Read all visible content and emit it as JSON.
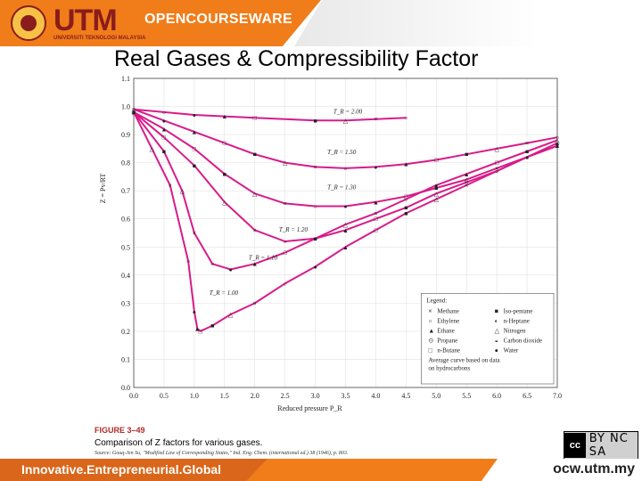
{
  "header": {
    "logo_text": "UTM",
    "logo_sub": "UNIVERSITI TEKNOLOGI MALAYSIA",
    "site_label": "OPENCOURSEWARE",
    "accent": "#f07d1a",
    "brand": "#8a1c1c"
  },
  "slide_title": "Real Gases & Compressibility Factor",
  "figure": {
    "label": "FIGURE 3–49",
    "description": "Comparison of Z factors for various gases.",
    "source": "Source: Gouq-Jen Su, \"Modified Law of Corresponding States,\" Ind. Eng. Chem. (international ed.) 38 (1946), p. 803."
  },
  "license": {
    "cc": "cc",
    "icons": "BY NC SA"
  },
  "footer": {
    "tagline": "Innovative.Entrepreneurial.Global",
    "url": "ocw.utm.my"
  },
  "chart_data": {
    "type": "line",
    "xlabel": "Reduced pressure P_R",
    "ylabel": "Z = Pv/RT",
    "xlim": [
      0,
      7.0
    ],
    "ylim": [
      0,
      1.1
    ],
    "xticks": [
      0,
      0.5,
      1.0,
      1.5,
      2.0,
      2.5,
      3.0,
      3.5,
      4.0,
      4.5,
      5.0,
      5.5,
      6.0,
      6.5,
      7.0
    ],
    "yticks": [
      0,
      0.1,
      0.2,
      0.3,
      0.4,
      0.5,
      0.6,
      0.7,
      0.8,
      0.9,
      1.0,
      1.1
    ],
    "grid": true,
    "line_color": "#d81b8a",
    "series": [
      {
        "name": "T_R = 2.00",
        "x": [
          0,
          0.5,
          1.0,
          1.5,
          2.0,
          3.0,
          3.5,
          4.0,
          4.5
        ],
        "y": [
          0.99,
          0.98,
          0.97,
          0.965,
          0.96,
          0.95,
          0.95,
          0.955,
          0.96
        ]
      },
      {
        "name": "T_R = 1.50",
        "x": [
          0,
          0.5,
          1.0,
          1.5,
          2.0,
          2.5,
          3.0,
          3.5,
          4.0,
          4.5,
          5.0,
          5.5,
          6.0,
          6.5,
          7.0
        ],
        "y": [
          0.99,
          0.95,
          0.91,
          0.87,
          0.83,
          0.8,
          0.785,
          0.78,
          0.785,
          0.795,
          0.81,
          0.83,
          0.85,
          0.87,
          0.89
        ]
      },
      {
        "name": "T_R = 1.30",
        "x": [
          0,
          0.5,
          1.0,
          1.5,
          2.0,
          2.5,
          3.0,
          3.5,
          4.0,
          4.5,
          5.0,
          5.5,
          6.0,
          6.5,
          7.0
        ],
        "y": [
          0.98,
          0.92,
          0.85,
          0.76,
          0.69,
          0.655,
          0.645,
          0.645,
          0.66,
          0.68,
          0.71,
          0.74,
          0.78,
          0.82,
          0.86
        ]
      },
      {
        "name": "T_R = 1.20",
        "x": [
          0,
          0.5,
          1.0,
          1.5,
          2.0,
          2.5,
          3.0,
          3.5,
          4.0,
          4.5,
          5.0,
          5.5,
          6.0,
          6.5,
          7.0
        ],
        "y": [
          0.98,
          0.89,
          0.79,
          0.66,
          0.56,
          0.52,
          0.53,
          0.56,
          0.6,
          0.64,
          0.69,
          0.73,
          0.77,
          0.82,
          0.86
        ]
      },
      {
        "name": "T_R = 1.10",
        "x": [
          0,
          0.5,
          0.8,
          1.0,
          1.3,
          1.6,
          2.0,
          2.5,
          3.0,
          3.5,
          4.0,
          4.5,
          5.0,
          5.5,
          6.0,
          6.5,
          7.0
        ],
        "y": [
          0.98,
          0.84,
          0.7,
          0.55,
          0.44,
          0.42,
          0.44,
          0.48,
          0.53,
          0.58,
          0.62,
          0.67,
          0.72,
          0.76,
          0.8,
          0.84,
          0.88
        ]
      },
      {
        "name": "T_R = 1.00",
        "x": [
          0,
          0.3,
          0.6,
          0.9,
          1.0,
          1.05,
          1.1,
          1.3,
          1.6,
          2.0,
          2.5,
          3.0,
          3.5,
          4.0,
          4.5,
          5.0,
          5.5,
          6.0,
          6.5,
          7.0
        ],
        "y": [
          0.98,
          0.85,
          0.72,
          0.45,
          0.27,
          0.21,
          0.2,
          0.22,
          0.26,
          0.3,
          0.37,
          0.43,
          0.5,
          0.56,
          0.62,
          0.67,
          0.72,
          0.77,
          0.82,
          0.87
        ]
      }
    ],
    "curve_labels": [
      {
        "text": "T_R = 2.00",
        "x": 3.3,
        "y": 0.975
      },
      {
        "text": "T_R = 1.50",
        "x": 3.2,
        "y": 0.83
      },
      {
        "text": "T_R = 1.30",
        "x": 3.2,
        "y": 0.705
      },
      {
        "text": "T_R = 1.20",
        "x": 2.4,
        "y": 0.555
      },
      {
        "text": "T_R = 1.10",
        "x": 1.9,
        "y": 0.455
      },
      {
        "text": "T_R = 1.00",
        "x": 1.25,
        "y": 0.33
      }
    ],
    "legend": {
      "position": "bottom-right",
      "title": "Legend:",
      "entries": [
        {
          "symbol": "×",
          "label": "Methane"
        },
        {
          "symbol": "■",
          "label": "Iso-pentane"
        },
        {
          "symbol": "○",
          "label": "Ethylene"
        },
        {
          "symbol": "◐",
          "label": "n-Heptane"
        },
        {
          "symbol": "▲",
          "label": "Ethane"
        },
        {
          "symbol": "△",
          "label": "Nitrogen"
        },
        {
          "symbol": "⊙",
          "label": "Propane"
        },
        {
          "symbol": "◒",
          "label": "Carbon dioxide"
        },
        {
          "symbol": "□",
          "label": "n-Butane"
        },
        {
          "symbol": "●",
          "label": "Water"
        }
      ],
      "note": "Average curve based on data on hydrocarbons"
    }
  }
}
